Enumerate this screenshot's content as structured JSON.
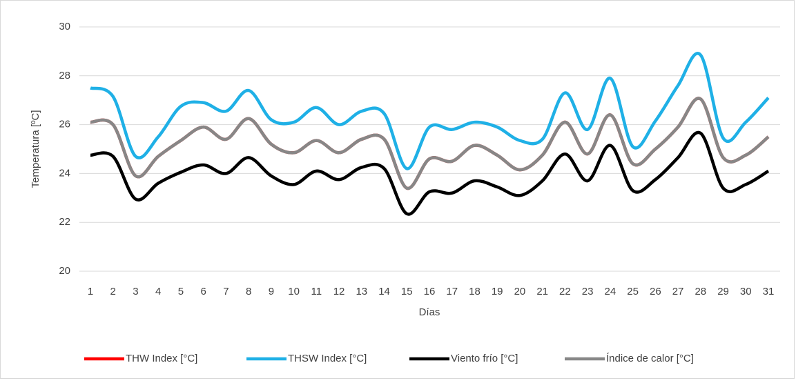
{
  "chart_data": {
    "type": "line",
    "x_label": "Días",
    "y_label": "Temperatura  [ºC]",
    "categories": [
      "1",
      "2",
      "3",
      "4",
      "5",
      "6",
      "7",
      "8",
      "9",
      "10",
      "11",
      "12",
      "13",
      "14",
      "15",
      "16",
      "17",
      "18",
      "19",
      "20",
      "21",
      "22",
      "23",
      "24",
      "25",
      "26",
      "27",
      "28",
      "29",
      "30",
      "31"
    ],
    "ylim": [
      20,
      30
    ],
    "yticks": [
      20,
      22,
      24,
      26,
      28,
      30
    ],
    "grid": true,
    "legend": "bottom",
    "series": [
      {
        "name": "THW Index [°C]",
        "color": "#ff0000",
        "values": [
          26.1,
          26.0,
          23.9,
          24.7,
          25.35,
          25.9,
          25.4,
          26.25,
          25.2,
          24.85,
          25.35,
          24.85,
          25.4,
          25.4,
          23.4,
          24.6,
          24.5,
          25.15,
          24.75,
          24.15,
          24.75,
          26.1,
          24.8,
          26.4,
          24.4,
          25.0,
          25.9,
          27.05,
          24.65,
          24.75,
          25.5
        ]
      },
      {
        "name": "THSW Index [°C]",
        "color": "#1fb0e6",
        "values": [
          27.5,
          27.15,
          24.7,
          25.5,
          26.75,
          26.9,
          26.55,
          27.4,
          26.2,
          26.1,
          26.7,
          26.0,
          26.55,
          26.45,
          24.2,
          25.9,
          25.8,
          26.1,
          25.9,
          25.35,
          25.4,
          27.3,
          25.8,
          27.9,
          25.1,
          26.15,
          27.6,
          28.85,
          25.45,
          26.1,
          27.1
        ]
      },
      {
        "name": "Viento frío [°C]",
        "color": "#000000",
        "values": [
          24.75,
          24.7,
          22.95,
          23.6,
          24.05,
          24.35,
          24.0,
          24.65,
          23.9,
          23.55,
          24.1,
          23.75,
          24.25,
          24.2,
          22.35,
          23.25,
          23.2,
          23.7,
          23.45,
          23.1,
          23.7,
          24.8,
          23.7,
          25.15,
          23.3,
          23.75,
          24.65,
          25.65,
          23.4,
          23.55,
          24.1
        ]
      },
      {
        "name": "Índice de calor  [°C]",
        "color": "#878787",
        "values": [
          26.1,
          26.0,
          23.9,
          24.7,
          25.35,
          25.9,
          25.4,
          26.25,
          25.2,
          24.85,
          25.35,
          24.85,
          25.4,
          25.4,
          23.4,
          24.6,
          24.5,
          25.15,
          24.75,
          24.15,
          24.75,
          26.1,
          24.8,
          26.4,
          24.4,
          25.0,
          25.9,
          27.05,
          24.65,
          24.75,
          25.5
        ]
      }
    ]
  }
}
